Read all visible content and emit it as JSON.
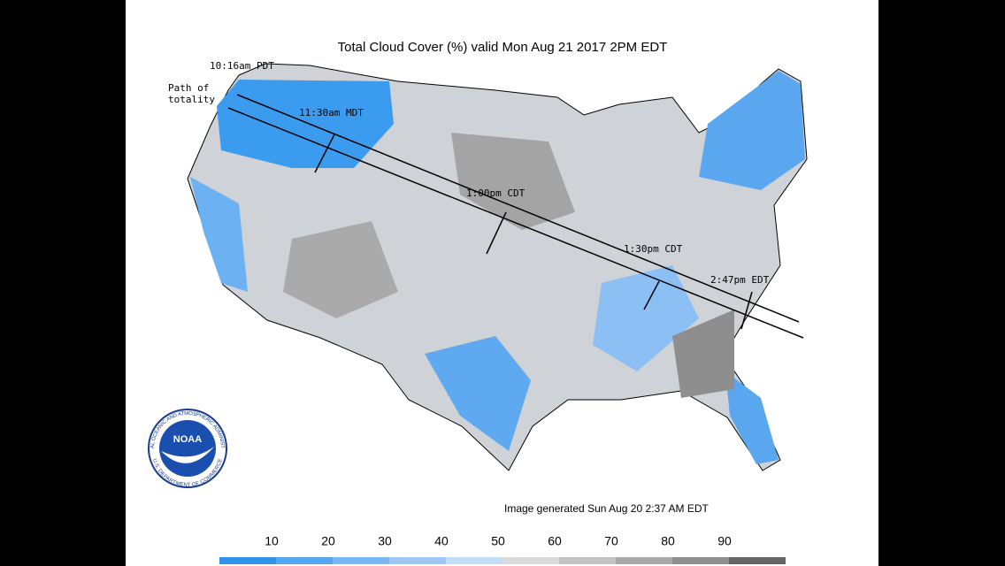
{
  "title": "Total Cloud Cover (%) valid Mon Aug 21 2017 2PM EDT",
  "path_label": [
    "Path of",
    "totality"
  ],
  "times": [
    "10:16am PDT",
    "11:30am MDT",
    "1:00pm CDT",
    "1:30pm CDT",
    "2:47pm EDT"
  ],
  "footer": "Image generated Sun Aug 20 2:37 AM EDT",
  "logo": {
    "name": "NOAA",
    "top_text": "NATIONAL OCEANIC AND ATMOSPHERIC ADMINISTRATION",
    "bottom_text": "U.S. DEPARTMENT OF COMMERCE"
  },
  "legend": {
    "labels": [
      10,
      20,
      30,
      40,
      50,
      60,
      70,
      80,
      90
    ],
    "colors": [
      "#2f93ee",
      "#55a6f0",
      "#79b8f3",
      "#9dc8f5",
      "#c3dcf8",
      "#dadada",
      "#c2c2c2",
      "#a9a9a9",
      "#8f8f8f",
      "#666666"
    ]
  }
}
